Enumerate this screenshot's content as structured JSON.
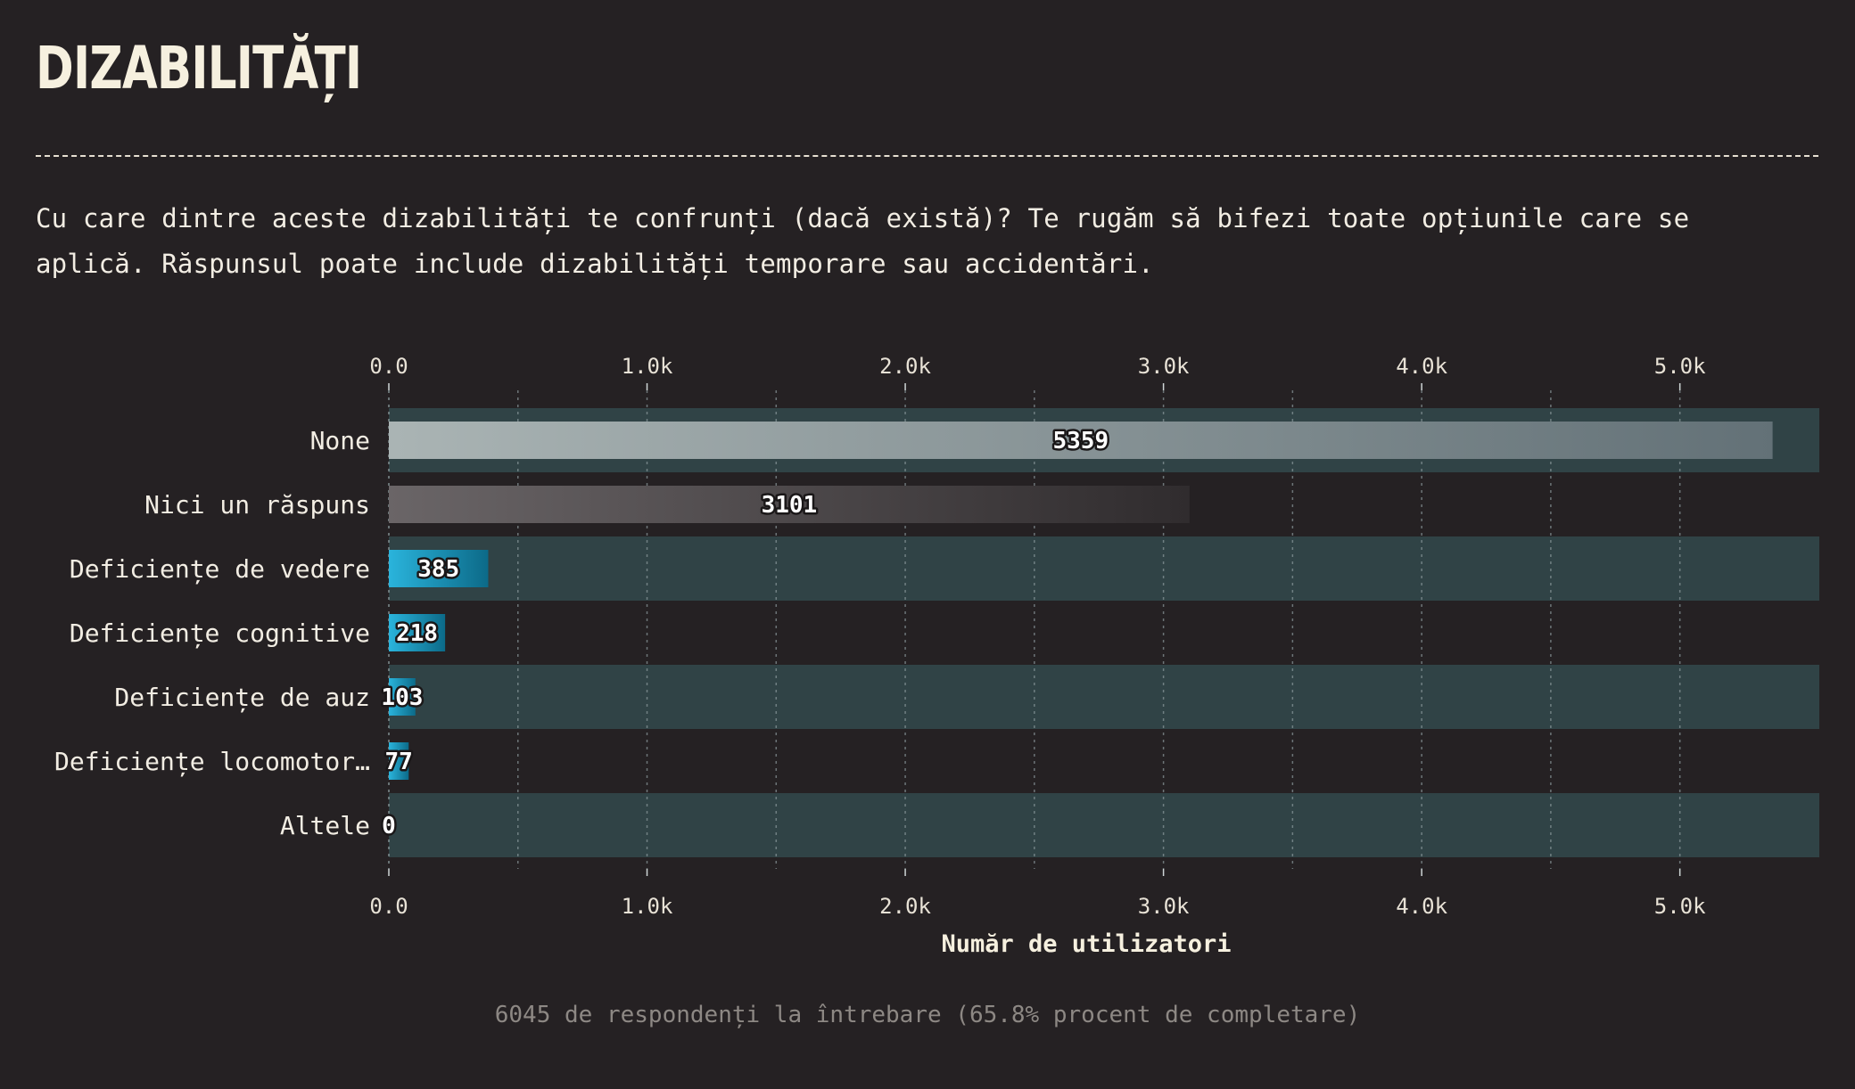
{
  "page": {
    "title": "DIZABILITĂȚI",
    "question": "Cu care dintre aceste dizabilități te confrunți (dacă există)? Te rugăm să bifezi toate opțiunile care se aplică. Răspunsul poate include dizabilități temporare sau accidentări.",
    "footnote": "6045 de respondenți la întrebare (65.8% procent de completare)"
  },
  "colors": {
    "background": "#252123",
    "row_band": "#304346",
    "none_bar_start": "#aab4b4",
    "none_bar_end": "#637177",
    "no_answer_bar_start": "#6a6567",
    "no_answer_bar_end": "#302c2e",
    "accent_bar_start": "#2ab4dc",
    "accent_bar_end": "#0c6a88"
  },
  "chart_data": {
    "type": "bar",
    "orientation": "horizontal",
    "categories": [
      "None",
      "Nici un răspuns",
      "Deficiențe de vedere",
      "Deficiențe cognitive",
      "Deficiențe de auz",
      "Deficiențe locomotor…",
      "Altele"
    ],
    "values": [
      5359,
      3101,
      385,
      218,
      103,
      77,
      0
    ],
    "value_labels": [
      "5359",
      "3101",
      "385",
      "218",
      "103",
      "77",
      "0"
    ],
    "xlabel": "Număr de utilizatori",
    "ylabel": "",
    "xlim": [
      0,
      5540
    ],
    "ticks": [
      0,
      1000,
      2000,
      3000,
      4000,
      5000
    ],
    "tick_labels": [
      "0.0",
      "1.0k",
      "2.0k",
      "3.0k",
      "4.0k",
      "5.0k"
    ],
    "minor_grid": [
      500,
      1500,
      2500,
      3500,
      4500
    ],
    "axis_top_and_bottom": true,
    "grid": true,
    "legend": "none"
  }
}
